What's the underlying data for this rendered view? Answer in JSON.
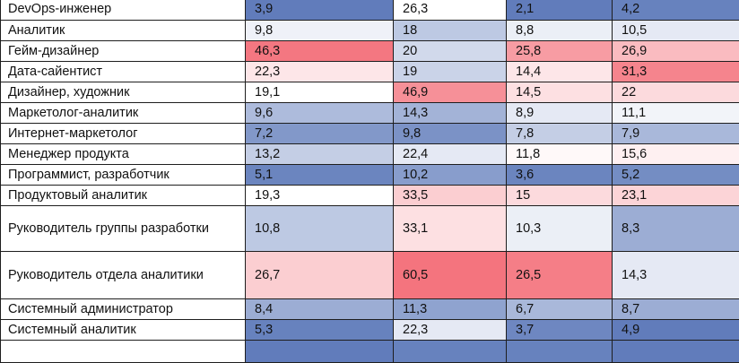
{
  "chart_data": {
    "type": "heatmap",
    "colors": {
      "low": "#5a77b8",
      "mid": "#ffffff",
      "high": "#f36570"
    },
    "rows": [
      {
        "label": "DevOps-инженер",
        "values": [
          "3,9",
          "26,3",
          "2,1",
          "4,2"
        ]
      },
      {
        "label": "Аналитик",
        "values": [
          "9,8",
          "18",
          "8,8",
          "10,5"
        ]
      },
      {
        "label": "Гейм-дизайнер",
        "values": [
          "46,3",
          "20",
          "25,8",
          "26,9"
        ]
      },
      {
        "label": "Дата-сайентист",
        "values": [
          "22,3",
          "19",
          "14,4",
          "31,3"
        ]
      },
      {
        "label": "Дизайнер, художник",
        "values": [
          "19,1",
          "46,9",
          "14,5",
          "22"
        ]
      },
      {
        "label": "Маркетолог-аналитик",
        "values": [
          "9,6",
          "14,3",
          "8,9",
          "11,1"
        ]
      },
      {
        "label": "Интернет-маркетолог",
        "values": [
          "7,2",
          "9,8",
          "7,8",
          "7,9"
        ]
      },
      {
        "label": "Менеджер продукта",
        "values": [
          "13,2",
          "22,4",
          "11,8",
          "15,6"
        ]
      },
      {
        "label": "Программист, разработчик",
        "values": [
          "5,1",
          "10,2",
          "3,6",
          "5,2"
        ]
      },
      {
        "label": "Продуктовый аналитик",
        "values": [
          "19,3",
          "33,5",
          "15",
          "23,1"
        ]
      },
      {
        "label": "Руководитель группы разработки",
        "values": [
          "10,8",
          "33,1",
          "10,3",
          "8,3"
        ]
      },
      {
        "label": "Руководитель отдела аналитики",
        "values": [
          "26,7",
          "60,5",
          "26,5",
          "14,3"
        ]
      },
      {
        "label": "Системный администратор",
        "values": [
          "8,4",
          "11,3",
          "6,7",
          "8,7"
        ]
      },
      {
        "label": "Системный аналитик",
        "values": [
          "5,3",
          "22,3",
          "3,7",
          "4,9"
        ]
      },
      {
        "label": "",
        "values": [
          "",
          "",
          "",
          ""
        ]
      }
    ],
    "column_color_levels": [
      [
        0.02,
        0.45,
        0.94,
        0.58,
        0.5,
        0.25,
        0.12,
        0.32,
        0.05,
        0.5,
        0.3,
        0.66,
        0.2,
        0.04,
        0.02
      ],
      [
        0.5,
        0.3,
        0.36,
        0.34,
        0.86,
        0.22,
        0.1,
        0.42,
        0.14,
        0.66,
        0.6,
        0.95,
        0.16,
        0.42,
        0.04
      ],
      [
        0.02,
        0.44,
        0.82,
        0.58,
        0.6,
        0.42,
        0.32,
        0.52,
        0.05,
        0.62,
        0.44,
        0.92,
        0.24,
        0.06,
        0.04
      ],
      [
        0.04,
        0.42,
        0.72,
        0.9,
        0.62,
        0.46,
        0.24,
        0.55,
        0.08,
        0.64,
        0.2,
        0.42,
        0.2,
        0.02,
        0.02
      ]
    ]
  }
}
